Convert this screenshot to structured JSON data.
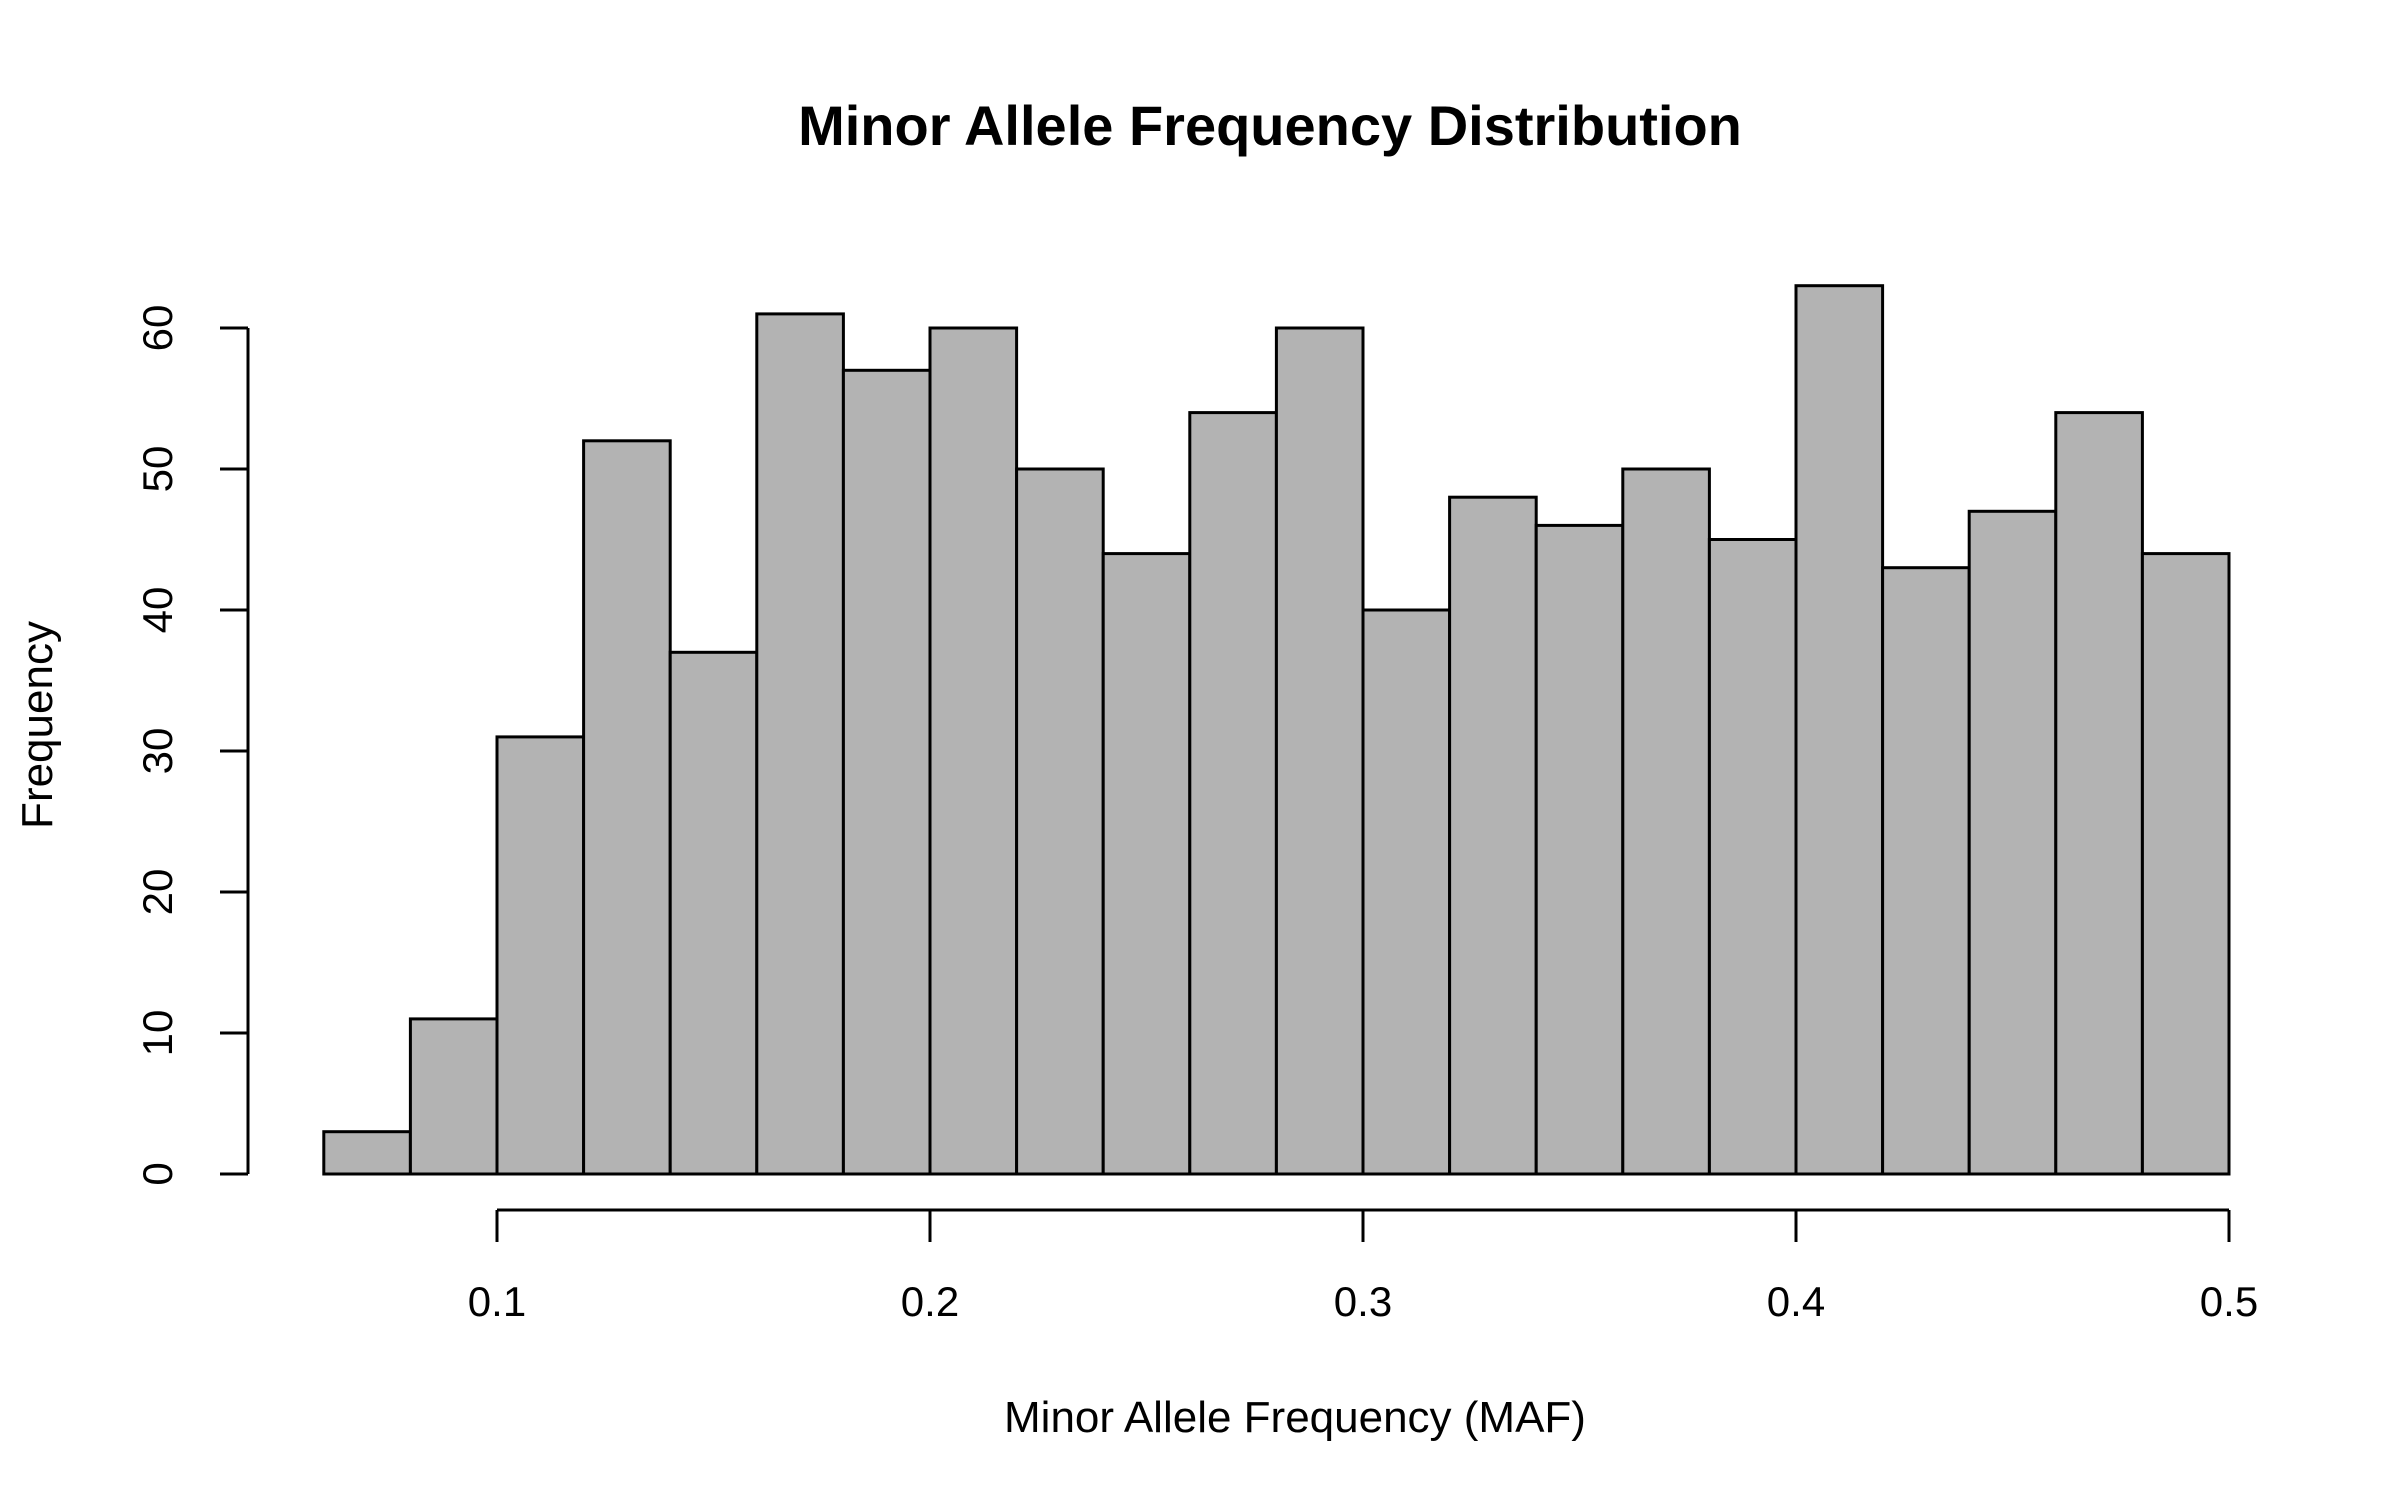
{
  "chart_data": {
    "type": "bar",
    "title": "Minor Allele Frequency Distribution",
    "xlabel": "Minor Allele Frequency (MAF)",
    "ylabel": "Frequency",
    "bin_edges": [
      0.06,
      0.08,
      0.1,
      0.12,
      0.14,
      0.16,
      0.18,
      0.2,
      0.22,
      0.24,
      0.26,
      0.28,
      0.3,
      0.32,
      0.34,
      0.36,
      0.38,
      0.4,
      0.42,
      0.44,
      0.46,
      0.48,
      0.5
    ],
    "values": [
      3,
      11,
      31,
      52,
      37,
      61,
      57,
      60,
      50,
      44,
      54,
      60,
      40,
      48,
      46,
      50,
      45,
      63,
      43,
      47,
      54,
      44
    ],
    "xlim": [
      0.1,
      0.5
    ],
    "ylim": [
      0,
      60
    ],
    "x_ticks": [
      "0.1",
      "0.2",
      "0.3",
      "0.4",
      "0.5"
    ],
    "y_ticks": [
      "0",
      "10",
      "20",
      "30",
      "40",
      "50",
      "60"
    ],
    "grid": false,
    "bar_color": "#b3b3b3",
    "edge_color": "#000000"
  }
}
